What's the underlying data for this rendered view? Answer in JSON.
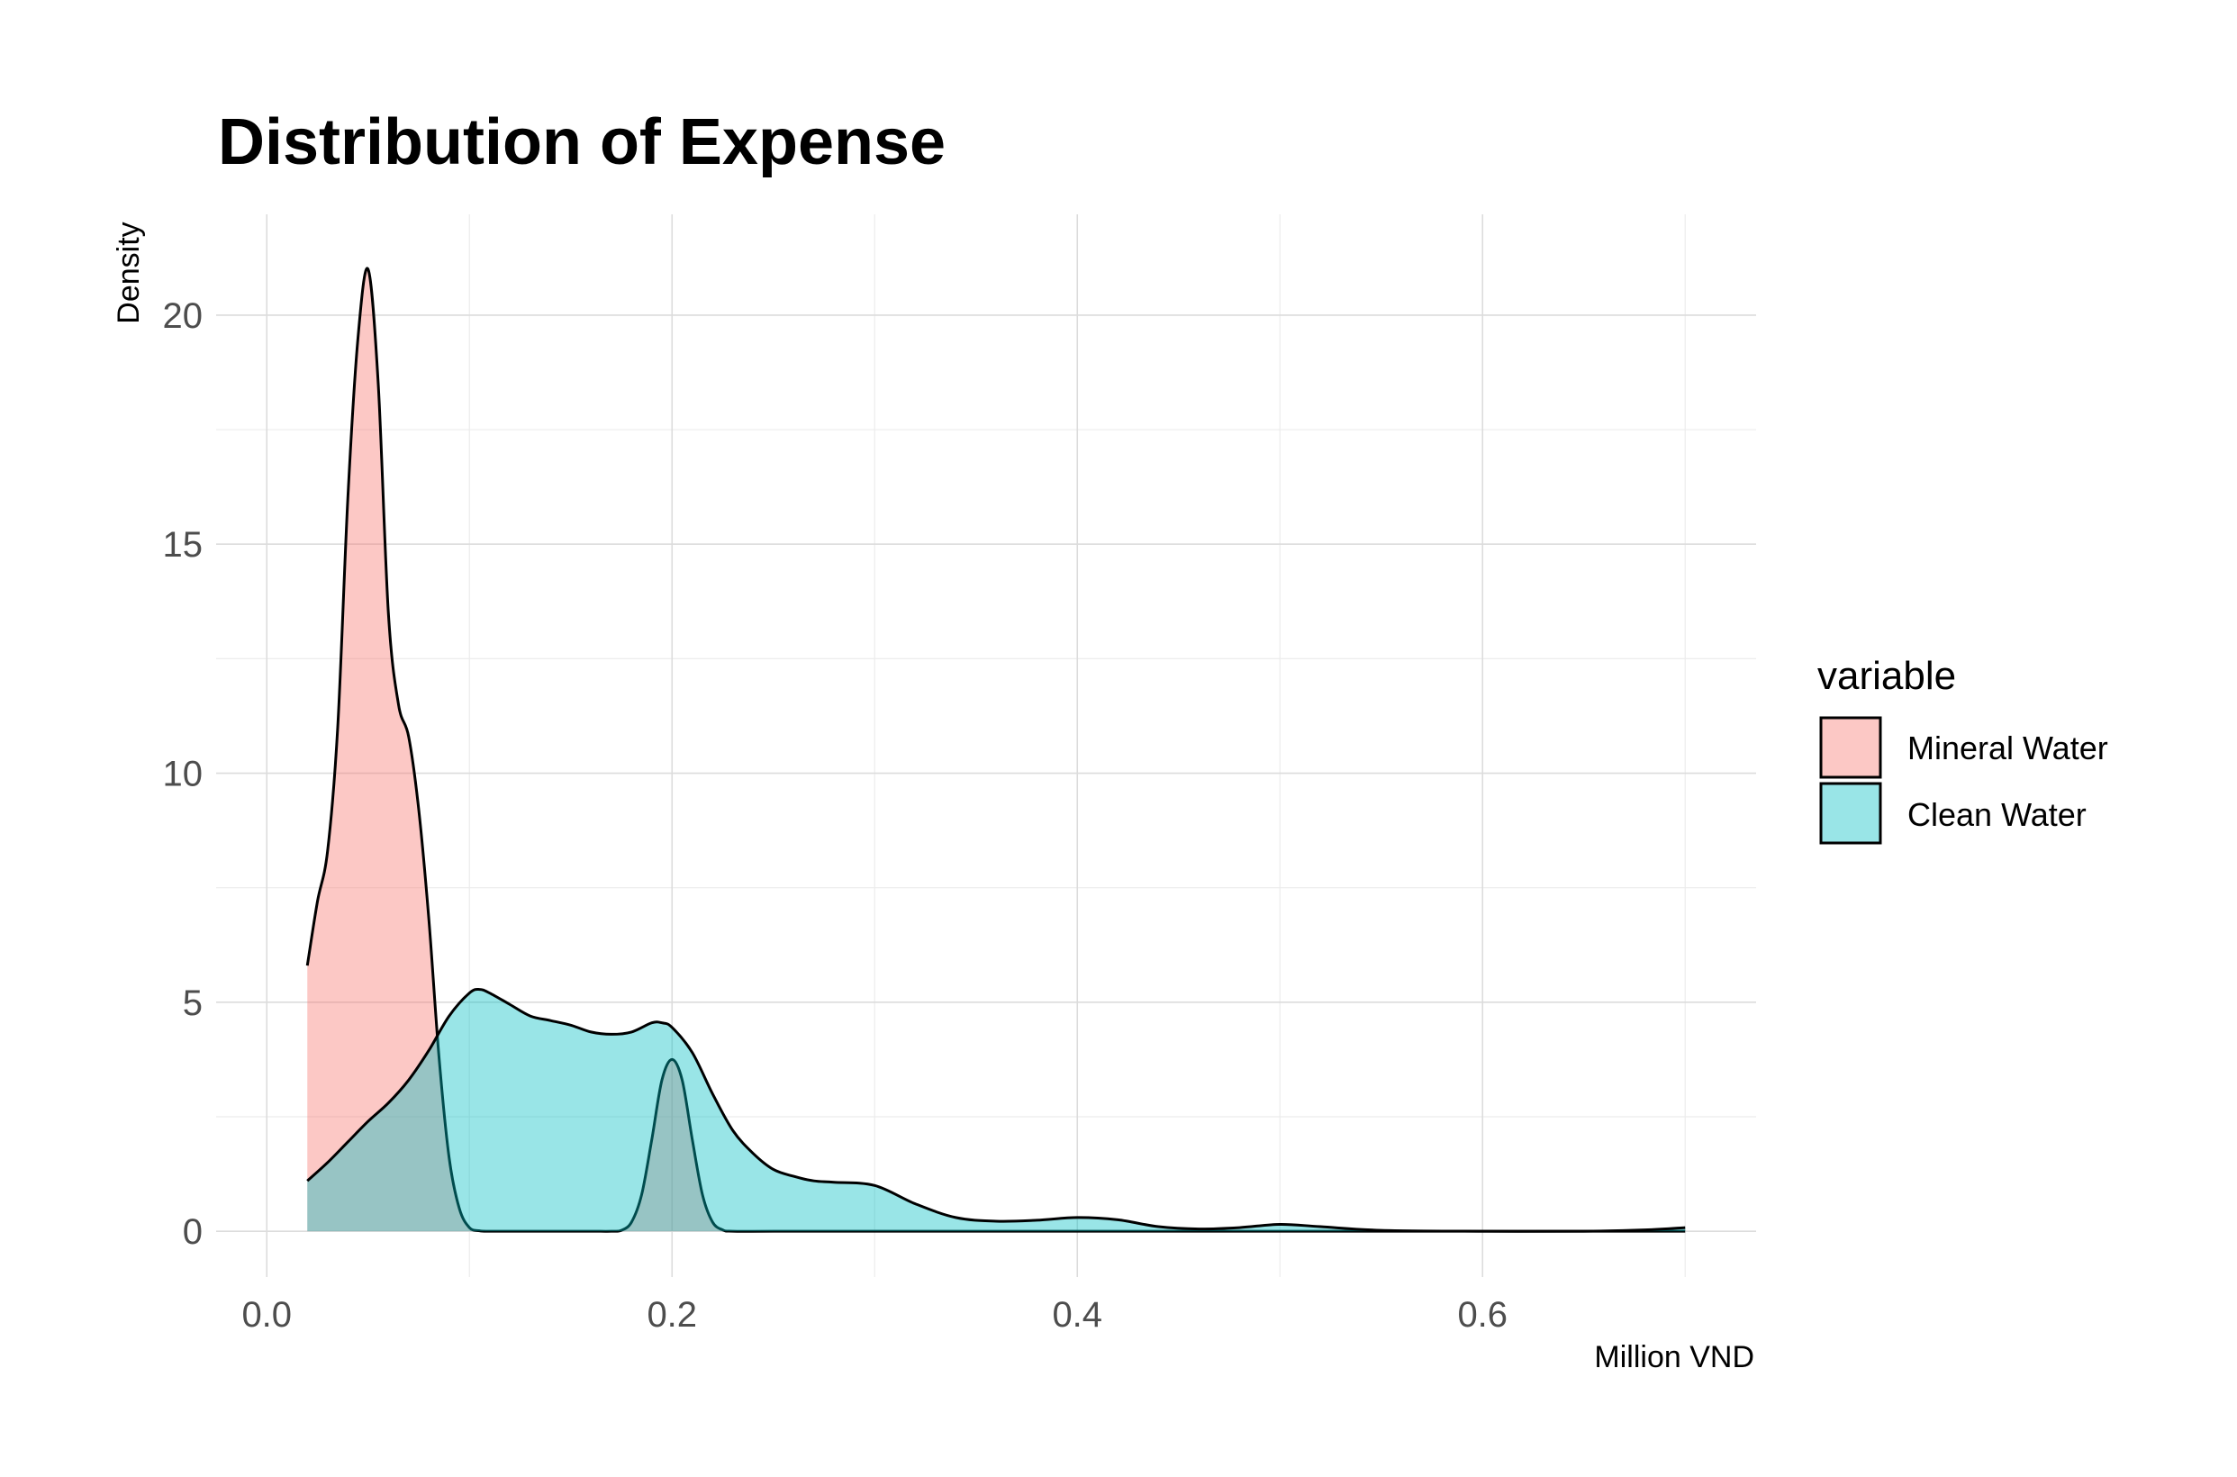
{
  "chart_data": {
    "type": "area",
    "title": "Distribution of Expense",
    "xlabel": "Million VND",
    "ylabel": "Density",
    "xlim": [
      -0.025,
      0.735
    ],
    "ylim": [
      -1.0,
      22.2
    ],
    "x_ticks": [
      0.0,
      0.2,
      0.4,
      0.6
    ],
    "x_tick_labels": [
      "0.0",
      "0.2",
      "0.4",
      "0.6"
    ],
    "x_minor_ticks": [
      0.1,
      0.3,
      0.5,
      0.7
    ],
    "y_ticks": [
      0,
      5,
      10,
      15,
      20
    ],
    "y_tick_labels": [
      "0",
      "5",
      "10",
      "15",
      "20"
    ],
    "y_minor_ticks": [
      2.5,
      7.5,
      12.5,
      17.5
    ],
    "grid": true,
    "legend": {
      "title": "variable",
      "position": "right"
    },
    "series": [
      {
        "name": "Mineral Water",
        "color": "#F8766D",
        "x": [
          0.02,
          0.025,
          0.03,
          0.035,
          0.04,
          0.045,
          0.05,
          0.055,
          0.06,
          0.065,
          0.07,
          0.075,
          0.08,
          0.085,
          0.09,
          0.095,
          0.1,
          0.105,
          0.11,
          0.12,
          0.14,
          0.16,
          0.17,
          0.175,
          0.18,
          0.185,
          0.19,
          0.195,
          0.2,
          0.205,
          0.21,
          0.215,
          0.22,
          0.225,
          0.23,
          0.25,
          0.3,
          0.4,
          0.5,
          0.6,
          0.7
        ],
        "values": [
          5.8,
          7.2,
          8.3,
          11.0,
          16.0,
          19.5,
          21.0,
          18.5,
          13.5,
          11.5,
          10.8,
          9.2,
          6.8,
          3.8,
          1.6,
          0.5,
          0.08,
          0.01,
          0.0,
          0.0,
          0.0,
          0.0,
          0.0,
          0.02,
          0.2,
          0.8,
          2.0,
          3.3,
          3.75,
          3.3,
          2.0,
          0.8,
          0.2,
          0.03,
          0.0,
          0.0,
          0.0,
          0.0,
          0.0,
          0.0,
          0.0
        ]
      },
      {
        "name": "Clean Water",
        "color": "#00BFC4",
        "x": [
          0.02,
          0.03,
          0.04,
          0.05,
          0.06,
          0.07,
          0.08,
          0.09,
          0.1,
          0.105,
          0.11,
          0.12,
          0.13,
          0.14,
          0.15,
          0.16,
          0.17,
          0.18,
          0.19,
          0.195,
          0.2,
          0.21,
          0.22,
          0.23,
          0.24,
          0.25,
          0.26,
          0.27,
          0.28,
          0.3,
          0.32,
          0.34,
          0.36,
          0.38,
          0.4,
          0.42,
          0.44,
          0.46,
          0.48,
          0.5,
          0.52,
          0.55,
          0.6,
          0.65,
          0.68,
          0.7
        ],
        "values": [
          1.1,
          1.5,
          1.95,
          2.4,
          2.8,
          3.3,
          3.95,
          4.7,
          5.2,
          5.28,
          5.2,
          4.95,
          4.7,
          4.6,
          4.5,
          4.35,
          4.3,
          4.35,
          4.55,
          4.55,
          4.45,
          3.9,
          3.0,
          2.2,
          1.7,
          1.35,
          1.2,
          1.1,
          1.07,
          1.0,
          0.6,
          0.3,
          0.22,
          0.24,
          0.3,
          0.25,
          0.1,
          0.05,
          0.08,
          0.15,
          0.1,
          0.02,
          0.0,
          0.0,
          0.03,
          0.08
        ]
      }
    ]
  }
}
